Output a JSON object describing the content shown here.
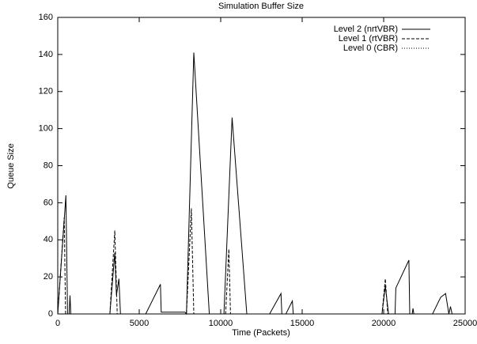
{
  "chart_data": {
    "type": "line",
    "title": "Simulation Buffer Size",
    "x_label": "Time (Packets)",
    "y_label": "Queue Size",
    "xlim": [
      0,
      25000
    ],
    "xticks": [
      0,
      5000,
      10000,
      15000,
      20000,
      25000
    ],
    "ylim": [
      0,
      160
    ],
    "yticks": [
      0,
      20,
      40,
      60,
      80,
      100,
      120,
      140,
      160
    ],
    "legend": "top-right",
    "series": [
      {
        "name": "Level 2 (nrtVBR)",
        "color": "#000000",
        "dash": "solid",
        "x": [
          0,
          500,
          600,
          700,
          750,
          800,
          3200,
          3500,
          3600,
          3750,
          3850,
          5400,
          6300,
          6350,
          7800,
          7900,
          8350,
          9300,
          10200,
          10700,
          11600,
          13000,
          13700,
          13750,
          14000,
          14400,
          14450,
          19900,
          20100,
          20300,
          20700,
          20750,
          21550,
          21600,
          21750,
          21800,
          21850,
          23000,
          23500,
          23800,
          24000,
          24100,
          24200
        ],
        "values": [
          0,
          64,
          0,
          0,
          10,
          0,
          0,
          33,
          10,
          19,
          0,
          0,
          16,
          1,
          1,
          0,
          141,
          0,
          0,
          106,
          0,
          0,
          11,
          0,
          0,
          7,
          0,
          0,
          15,
          0,
          0,
          14,
          29,
          0,
          0,
          3,
          0,
          0,
          9,
          11,
          0,
          4,
          0
        ]
      },
      {
        "name": "Level 1 (rtVBR)",
        "color": "#000000",
        "dash": "dashed",
        "x": [
          0,
          400,
          480,
          3200,
          3500,
          3650,
          7900,
          8200,
          8350,
          10300,
          10500,
          10600,
          19900,
          20100,
          20250,
          24300
        ],
        "values": [
          0,
          52,
          0,
          0,
          45,
          0,
          0,
          57,
          0,
          0,
          35,
          0,
          0,
          19,
          0,
          0
        ]
      },
      {
        "name": "Level 0 (CBR)",
        "color": "#000000",
        "dash": "dotted",
        "x": [
          0,
          24300
        ],
        "values": [
          0,
          0
        ]
      }
    ]
  }
}
